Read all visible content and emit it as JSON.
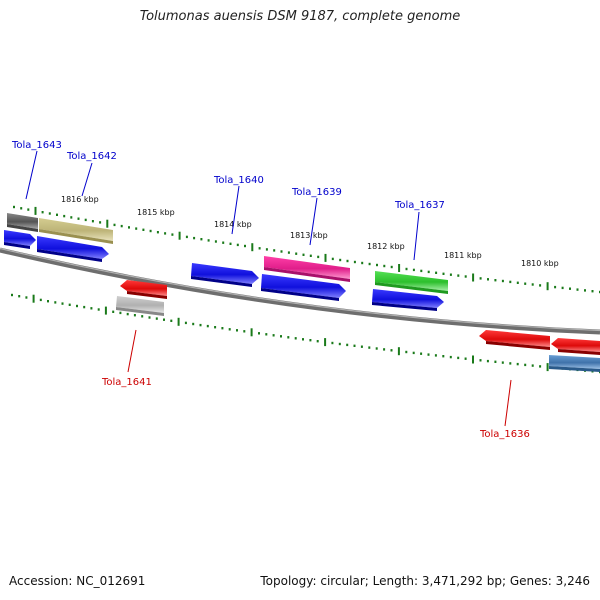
{
  "title": "Tolumonas auensis DSM 9187, complete genome",
  "footer": {
    "accession": "Accession: NC_012691",
    "summary": "Topology: circular; Length: 3,471,292 bp; Genes: 3,246"
  },
  "scale_labels": [
    "1816 kbp",
    "1815 kbp",
    "1814 kbp",
    "1813 kbp",
    "1812 kbp",
    "1811 kbp",
    "1810 kbp"
  ],
  "genes": [
    {
      "id": "Tola_1643",
      "strand": "forward",
      "color": "#0000cc"
    },
    {
      "id": "Tola_1642",
      "strand": "forward",
      "color": "#0000cc"
    },
    {
      "id": "Tola_1641",
      "strand": "reverse",
      "color": "#cc0000"
    },
    {
      "id": "Tola_1640",
      "strand": "forward",
      "color": "#0000cc"
    },
    {
      "id": "Tola_1639",
      "strand": "forward",
      "color": "#0000cc"
    },
    {
      "id": "Tola_1637",
      "strand": "forward",
      "color": "#0000cc"
    },
    {
      "id": "Tola_1636",
      "strand": "reverse",
      "color": "#cc0000"
    }
  ],
  "colors": {
    "forward_cds": "#1a1aee",
    "reverse_cds": "#ee1111",
    "trna": "#e0208a",
    "rrna": "#33cc33",
    "other_olive": "#c8c080",
    "other_gray": "#666666",
    "other_light": "#bbbbbb",
    "steel": "#4a7fb5",
    "ticks": "#1a7a1a",
    "backbone": "#888888"
  }
}
